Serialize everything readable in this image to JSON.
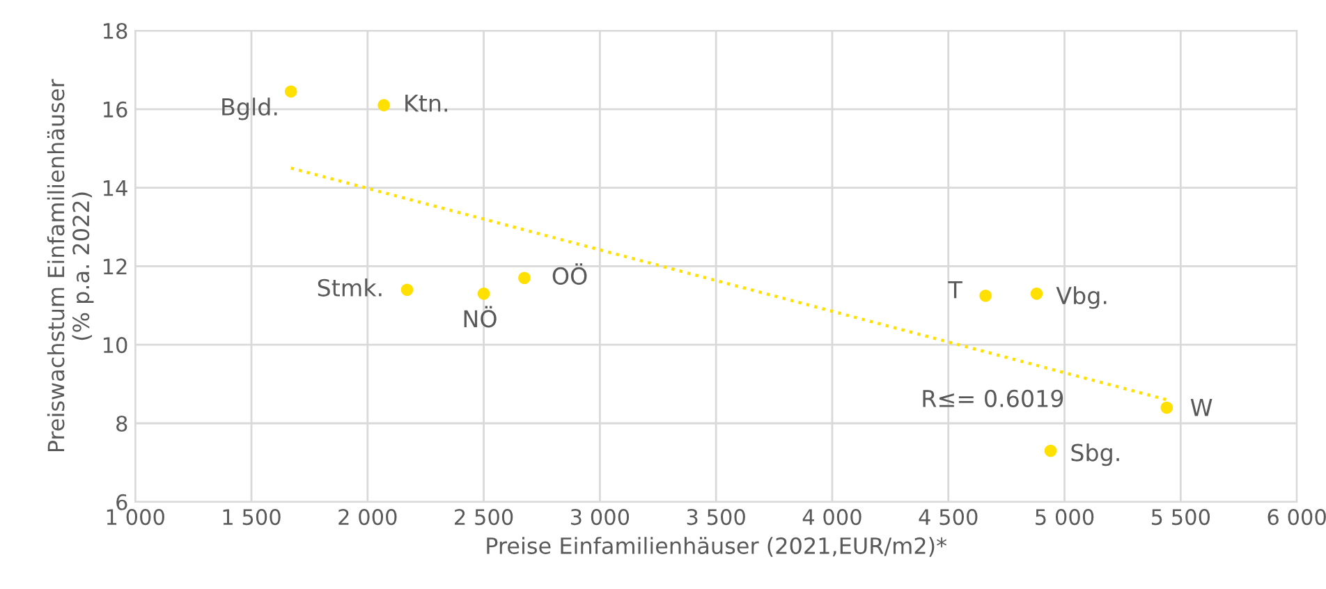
{
  "chart_data": {
    "type": "scatter",
    "xlabel": "Preise Einfamilienhäuser (2021,EUR/m2)*",
    "ylabel": "Preiswachstum Einfamilienhäuser\n(% p.a. 2022)",
    "xlim": [
      1000,
      6000
    ],
    "xticks": [
      {
        "value": 1000,
        "label": "1 000"
      },
      {
        "value": 1500,
        "label": "1 500"
      },
      {
        "value": 2000,
        "label": "2 000"
      },
      {
        "value": 2500,
        "label": "2 500"
      },
      {
        "value": 3000,
        "label": "3 000"
      },
      {
        "value": 3500,
        "label": "3 500"
      },
      {
        "value": 4000,
        "label": "4 000"
      },
      {
        "value": 4500,
        "label": "4 500"
      },
      {
        "value": 5000,
        "label": "5 000"
      },
      {
        "value": 5500,
        "label": "5 500"
      },
      {
        "value": 6000,
        "label": "6 000"
      }
    ],
    "ylim": [
      6,
      18
    ],
    "yticks": [
      6,
      8,
      10,
      12,
      14,
      16,
      18
    ],
    "grid": true,
    "series": [
      {
        "marker": "circle",
        "color": "#ffe000",
        "x": [
          1670,
          2070,
          2170,
          2500,
          2675,
          4660,
          4880,
          5440,
          4940
        ],
        "values": [
          16.45,
          16.1,
          11.4,
          11.3,
          11.7,
          11.25,
          11.3,
          8.4,
          7.3
        ]
      },
      {
        "type": "line",
        "color": "#ffe000",
        "line_style": "dotted",
        "x": [
          1670,
          5440
        ],
        "values": [
          14.5,
          8.6
        ]
      }
    ],
    "annotations": [
      {
        "text": "Bgld.",
        "x": 1670,
        "y": 16.45
      },
      {
        "text": "Ktn.",
        "x": 2070,
        "y": 16.1
      },
      {
        "text": "Stmk.",
        "x": 2170,
        "y": 11.4
      },
      {
        "text": "NÖ",
        "x": 2500,
        "y": 11.3
      },
      {
        "text": "OÖ",
        "x": 2675,
        "y": 11.7
      },
      {
        "text": "T",
        "x": 4660,
        "y": 11.25
      },
      {
        "text": "Vbg.",
        "x": 4880,
        "y": 11.3
      },
      {
        "text": "W",
        "x": 5440,
        "y": 8.4
      },
      {
        "text": "Sbg.",
        "x": 4940,
        "y": 7.3
      },
      "R≤= 0.6019"
    ]
  }
}
